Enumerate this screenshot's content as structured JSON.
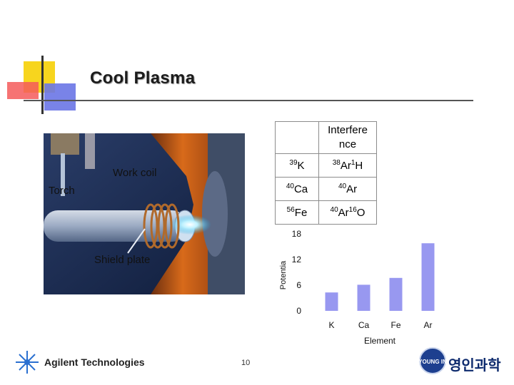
{
  "title": "Cool Plasma",
  "photo": {
    "labels": {
      "work_coil": "Work coil",
      "torch": "Torch",
      "shield_plate": "Shield plate"
    }
  },
  "interference_table": {
    "header": [
      "",
      "Interfere nce"
    ],
    "rows": [
      {
        "element": {
          "mass": "39",
          "sym": "K"
        },
        "interference": [
          {
            "mass": "38",
            "sym": "Ar"
          },
          {
            "mass": "1",
            "sym": "H"
          }
        ]
      },
      {
        "element": {
          "mass": "40",
          "sym": "Ca"
        },
        "interference": [
          {
            "mass": "40",
            "sym": "Ar"
          }
        ]
      },
      {
        "element": {
          "mass": "56",
          "sym": "Fe"
        },
        "interference": [
          {
            "mass": "40",
            "sym": "Ar"
          },
          {
            "mass": "16",
            "sym": "O"
          }
        ]
      }
    ]
  },
  "chart_data": {
    "type": "bar",
    "categories": [
      "K",
      "Ca",
      "Fe",
      "Ar"
    ],
    "values": [
      4.3,
      6.1,
      7.7,
      15.8
    ],
    "ylabel": "Potentia",
    "xlabel": "Element",
    "yticks": [
      0,
      6,
      12,
      18
    ],
    "ylim": [
      0,
      18
    ],
    "bar_color": "#9898f0",
    "grid": false
  },
  "footer": {
    "page_number": "10",
    "agilent": "Agilent Technologies",
    "youngin": "영인과학",
    "youngin_badge": "YOUNG IN"
  }
}
